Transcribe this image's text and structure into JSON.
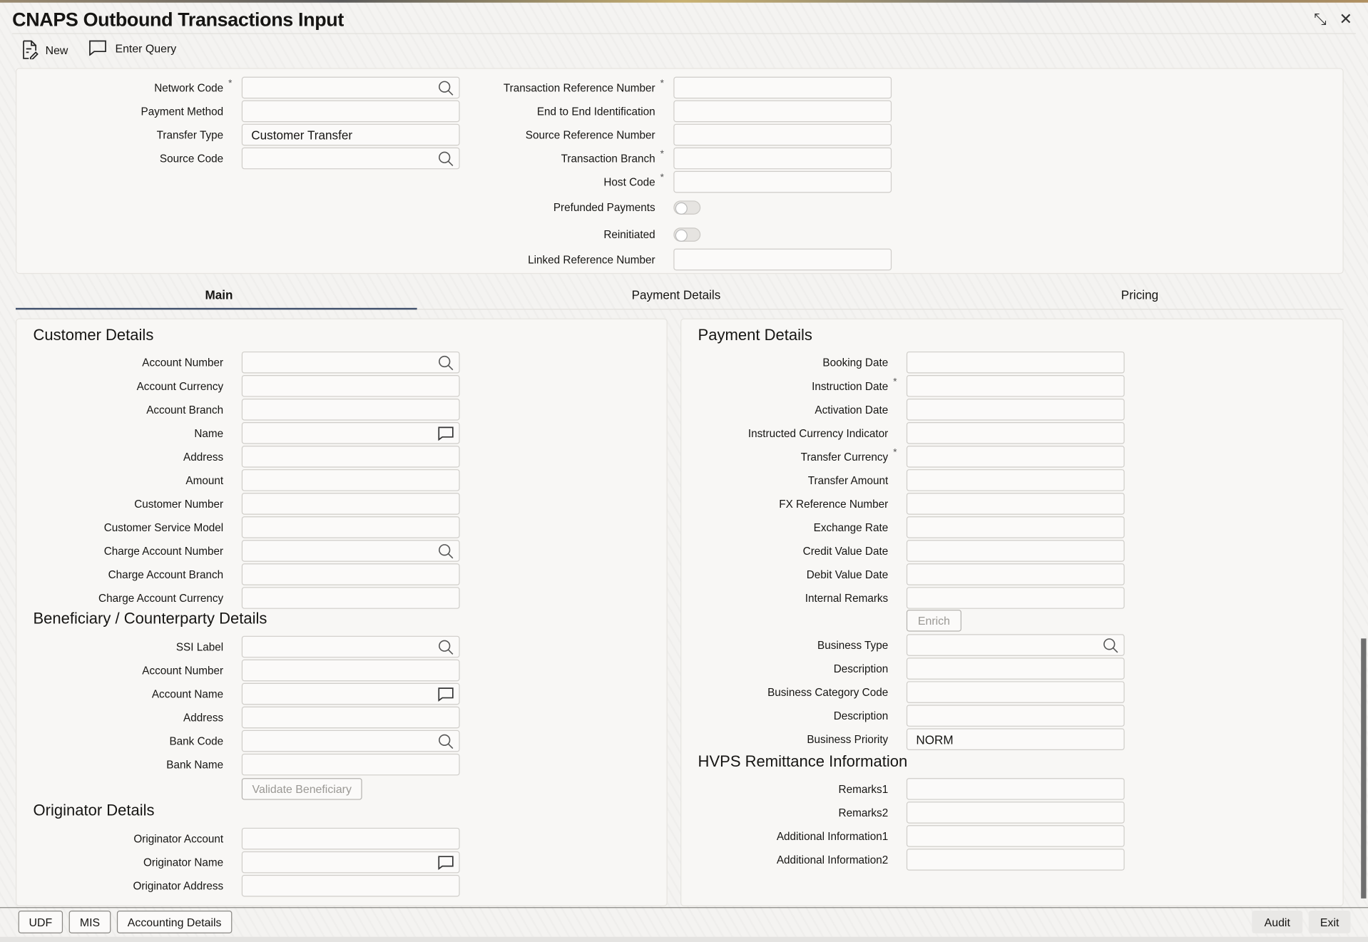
{
  "title": "CNAPS Outbound Transactions Input",
  "toolbar": {
    "new_label": "New",
    "enter_query_label": "Enter Query"
  },
  "header": {
    "left": [
      {
        "label": "Network Code",
        "required": true,
        "icon": "search",
        "value": ""
      },
      {
        "label": "Payment Method",
        "value": ""
      },
      {
        "label": "Transfer Type",
        "value": "Customer Transfer"
      },
      {
        "label": "Source Code",
        "icon": "search",
        "value": ""
      }
    ],
    "right": [
      {
        "label": "Transaction Reference Number",
        "required": true,
        "value": ""
      },
      {
        "label": "End to End Identification",
        "value": ""
      },
      {
        "label": "Source Reference Number",
        "value": ""
      },
      {
        "label": "Transaction Branch",
        "required": true,
        "value": ""
      },
      {
        "label": "Host Code",
        "required": true,
        "value": ""
      },
      {
        "label": "Prefunded Payments",
        "toggle": true
      },
      {
        "label": "Reinitiated",
        "toggle": true
      },
      {
        "label": "Linked Reference Number",
        "value": ""
      }
    ]
  },
  "tabs": [
    {
      "label": "Main",
      "active": true
    },
    {
      "label": "Payment Details"
    },
    {
      "label": "Pricing"
    }
  ],
  "customer": {
    "heading": "Customer Details",
    "rows": [
      {
        "label": "Account Number",
        "icon": "search",
        "value": ""
      },
      {
        "label": "Account Currency",
        "value": ""
      },
      {
        "label": "Account Branch",
        "value": ""
      },
      {
        "label": "Name",
        "icon": "comment",
        "value": ""
      },
      {
        "label": "Address",
        "value": ""
      },
      {
        "label": "Amount",
        "value": ""
      },
      {
        "label": "Customer Number",
        "value": ""
      },
      {
        "label": "Customer Service Model",
        "value": ""
      },
      {
        "label": "Charge Account Number",
        "icon": "search",
        "value": ""
      },
      {
        "label": "Charge Account Branch",
        "value": ""
      },
      {
        "label": "Charge Account Currency",
        "value": ""
      }
    ]
  },
  "beneficiary": {
    "heading": "Beneficiary / Counterparty Details",
    "rows": [
      {
        "label": "SSI Label",
        "icon": "search",
        "value": ""
      },
      {
        "label": "Account Number",
        "value": ""
      },
      {
        "label": "Account Name",
        "icon": "comment",
        "value": ""
      },
      {
        "label": "Address",
        "value": ""
      },
      {
        "label": "Bank Code",
        "icon": "search",
        "value": ""
      },
      {
        "label": "Bank Name",
        "value": ""
      }
    ],
    "validate_label": "Validate Beneficiary"
  },
  "originator": {
    "heading": "Originator Details",
    "rows": [
      {
        "label": "Originator Account",
        "value": ""
      },
      {
        "label": "Originator Name",
        "icon": "comment",
        "value": ""
      },
      {
        "label": "Originator Address",
        "value": ""
      }
    ]
  },
  "payment": {
    "heading": "Payment Details",
    "rows": [
      {
        "label": "Booking Date",
        "value": ""
      },
      {
        "label": "Instruction Date",
        "required": true,
        "value": ""
      },
      {
        "label": "Activation Date",
        "value": ""
      },
      {
        "label": "Instructed Currency Indicator",
        "value": ""
      },
      {
        "label": "Transfer Currency",
        "required": true,
        "value": ""
      },
      {
        "label": "Transfer Amount",
        "value": ""
      },
      {
        "label": "FX Reference Number",
        "value": ""
      },
      {
        "label": "Exchange Rate",
        "value": ""
      },
      {
        "label": "Credit Value Date",
        "value": ""
      },
      {
        "label": "Debit Value Date",
        "value": ""
      },
      {
        "label": "Internal Remarks",
        "value": ""
      }
    ],
    "enrich_label": "Enrich",
    "rows2": [
      {
        "label": "Business Type",
        "icon": "search",
        "value": ""
      },
      {
        "label": "Description",
        "value": ""
      },
      {
        "label": "Business Category Code",
        "value": ""
      },
      {
        "label": "Description",
        "value": ""
      },
      {
        "label": "Business Priority",
        "value": "NORM"
      }
    ]
  },
  "hvps": {
    "heading": "HVPS Remittance Information",
    "rows": [
      {
        "label": "Remarks1",
        "value": ""
      },
      {
        "label": "Remarks2",
        "value": ""
      },
      {
        "label": "Additional Information1",
        "value": ""
      },
      {
        "label": "Additional Information2",
        "value": ""
      }
    ]
  },
  "footer": {
    "udf": "UDF",
    "mis": "MIS",
    "accounting": "Accounting Details",
    "audit": "Audit",
    "exit": "Exit"
  },
  "colors": {
    "tab_underline": "#3f4f6b"
  }
}
